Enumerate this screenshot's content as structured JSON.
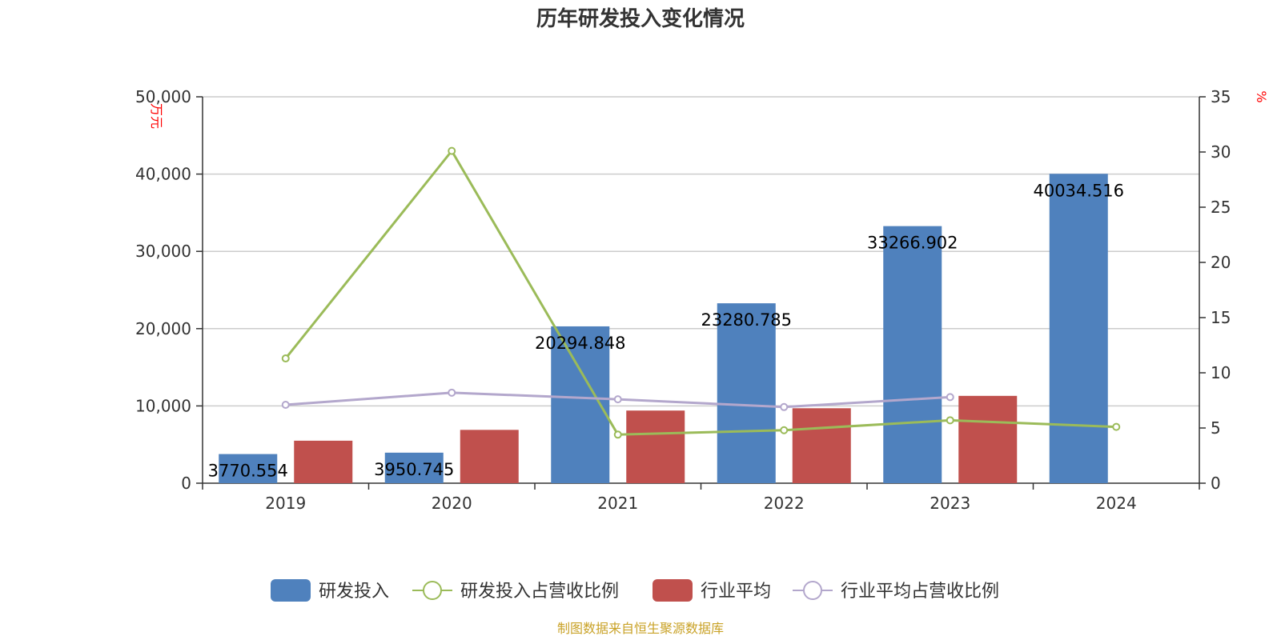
{
  "chart_data": {
    "type": "bar",
    "title": "历年研发投入变化情况",
    "categories": [
      "2019",
      "2020",
      "2021",
      "2022",
      "2023",
      "2024"
    ],
    "y_left": {
      "unit": "万元",
      "ylim": [
        0,
        50000
      ],
      "ticks": [
        "0",
        "10,000",
        "20,000",
        "30,000",
        "40,000",
        "50,000"
      ]
    },
    "y_right": {
      "unit": "%",
      "ylim": [
        0,
        35
      ],
      "ticks": [
        "0",
        "5",
        "10",
        "15",
        "20",
        "25",
        "30",
        "35"
      ]
    },
    "series": [
      {
        "name": "研发投入",
        "kind": "bar",
        "axis": "left",
        "color": "#4f81bd",
        "values": [
          3770.554,
          3950.745,
          20294.848,
          23280.785,
          33266.902,
          40034.516
        ],
        "labels": [
          "3770.554",
          "3950.745",
          "20294.848",
          "23280.785",
          "33266.902",
          "40034.516"
        ]
      },
      {
        "name": "研发投入占营收比例",
        "kind": "line",
        "axis": "right",
        "color": "#9bbb59",
        "values": [
          11.3,
          30.1,
          4.4,
          4.8,
          5.7,
          5.1
        ]
      },
      {
        "name": "行业平均",
        "kind": "bar",
        "axis": "left",
        "color": "#c0504d",
        "values": [
          5500,
          6900,
          9400,
          9700,
          11300,
          null
        ]
      },
      {
        "name": "行业平均占营收比例",
        "kind": "line",
        "axis": "right",
        "color": "#b3a7cc",
        "values": [
          7.1,
          8.2,
          7.6,
          6.9,
          7.8,
          null
        ]
      }
    ],
    "grid": true,
    "legend_position": "bottom"
  },
  "source": "制图数据来自恒生聚源数据库"
}
